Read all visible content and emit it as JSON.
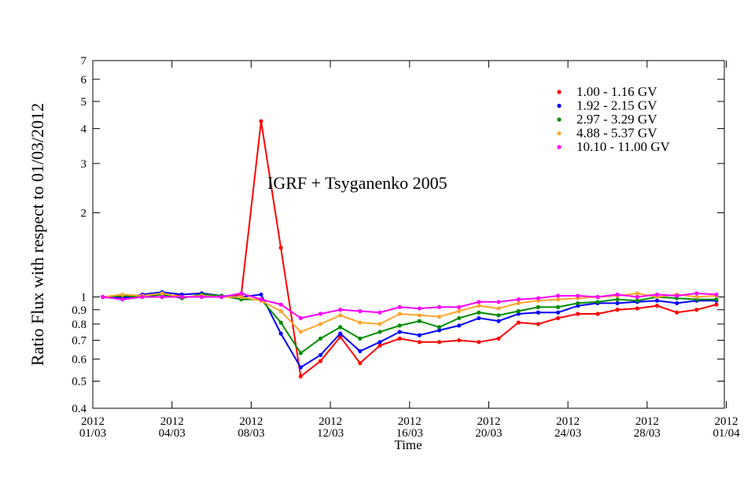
{
  "chart_data": {
    "type": "line",
    "ylabel": "Ratio Flux with respect to 01/03/2012",
    "xlabel": "Time",
    "yscale": "log",
    "ylim": [
      0.4,
      7
    ],
    "xlim": [
      -0.5,
      31.4
    ],
    "yticks": [
      {
        "value": 0.4,
        "label": "0.4"
      },
      {
        "value": 0.5,
        "label": "0.5"
      },
      {
        "value": 0.6,
        "label": "0.6"
      },
      {
        "value": 0.7,
        "label": "0.7"
      },
      {
        "value": 0.8,
        "label": "0.8"
      },
      {
        "value": 0.9,
        "label": "0.9"
      },
      {
        "value": 1,
        "label": "1"
      },
      {
        "value": 2,
        "label": "2"
      },
      {
        "value": 3,
        "label": "3"
      },
      {
        "value": 4,
        "label": "4"
      },
      {
        "value": 5,
        "label": "5"
      },
      {
        "value": 6,
        "label": "6"
      },
      {
        "value": 7,
        "label": "7"
      }
    ],
    "xticks": [
      {
        "value": -0.5,
        "line1": "2012",
        "line2": "01/03"
      },
      {
        "value": 3.5,
        "line1": "2012",
        "line2": "04/03"
      },
      {
        "value": 7.5,
        "line1": "2012",
        "line2": "08/03"
      },
      {
        "value": 11.5,
        "line1": "2012",
        "line2": "12/03"
      },
      {
        "value": 15.5,
        "line1": "2012",
        "line2": "16/03"
      },
      {
        "value": 19.5,
        "line1": "2012",
        "line2": "20/03"
      },
      {
        "value": 23.5,
        "line1": "2012",
        "line2": "24/03"
      },
      {
        "value": 27.5,
        "line1": "2012",
        "line2": "28/03"
      },
      {
        "value": 31.5,
        "line1": "2012",
        "line2": "01/04"
      }
    ],
    "annotation": "IGRF + Tsyganenko 2005",
    "legend_position": "top-right",
    "x": [
      0,
      1,
      2,
      3,
      4,
      5,
      6,
      7,
      8,
      9,
      10,
      11,
      12,
      13,
      14,
      15,
      16,
      17,
      18,
      19,
      20,
      21,
      22,
      23,
      24,
      25,
      26,
      27,
      28,
      29,
      30,
      31
    ],
    "series": [
      {
        "name": "1.00 - 1.16 GV",
        "color": "#ff0000",
        "values": [
          1.0,
          1.0,
          1.0,
          1.0,
          1.02,
          1.03,
          1.0,
          1.02,
          4.25,
          1.5,
          0.52,
          0.59,
          0.72,
          0.58,
          0.67,
          0.71,
          0.69,
          0.69,
          0.7,
          0.69,
          0.71,
          0.81,
          0.8,
          0.84,
          0.87,
          0.87,
          0.9,
          0.91,
          0.93,
          0.88,
          0.9,
          0.94
        ]
      },
      {
        "name": "1.92 - 2.15 GV",
        "color": "#0000ff",
        "values": [
          1.0,
          0.99,
          1.02,
          1.04,
          1.02,
          1.03,
          1.01,
          1.0,
          1.02,
          0.74,
          0.56,
          0.62,
          0.74,
          0.64,
          0.69,
          0.75,
          0.73,
          0.76,
          0.79,
          0.84,
          0.82,
          0.87,
          0.88,
          0.88,
          0.93,
          0.95,
          0.95,
          0.96,
          0.97,
          0.95,
          0.97,
          0.97
        ]
      },
      {
        "name": "2.97 - 3.29 GV",
        "color": "#008c00",
        "values": [
          1.0,
          1.01,
          1.0,
          1.02,
          0.99,
          1.02,
          1.01,
          0.98,
          0.98,
          0.81,
          0.63,
          0.71,
          0.78,
          0.71,
          0.75,
          0.79,
          0.82,
          0.78,
          0.84,
          0.88,
          0.86,
          0.89,
          0.92,
          0.92,
          0.95,
          0.96,
          0.98,
          0.97,
          1.0,
          0.99,
          0.98,
          0.98
        ]
      },
      {
        "name": "4.88 - 5.37 GV",
        "color": "#ffa530",
        "values": [
          1.0,
          1.02,
          1.01,
          1.03,
          1.0,
          1.01,
          1.0,
          1.0,
          0.97,
          0.89,
          0.75,
          0.8,
          0.86,
          0.81,
          0.8,
          0.87,
          0.86,
          0.85,
          0.89,
          0.93,
          0.91,
          0.95,
          0.97,
          0.98,
          0.99,
          1.0,
          1.01,
          1.03,
          1.0,
          1.02,
          1.0,
          1.01
        ]
      },
      {
        "name": "10.10 - 11.00 GV",
        "color": "#ff00ff",
        "values": [
          1.0,
          0.98,
          1.0,
          1.0,
          1.0,
          1.0,
          1.0,
          1.03,
          0.98,
          0.94,
          0.84,
          0.87,
          0.9,
          0.89,
          0.88,
          0.92,
          0.91,
          0.92,
          0.92,
          0.96,
          0.96,
          0.98,
          0.99,
          1.01,
          1.01,
          1.0,
          1.02,
          1.0,
          1.02,
          1.01,
          1.03,
          1.02
        ]
      }
    ]
  }
}
